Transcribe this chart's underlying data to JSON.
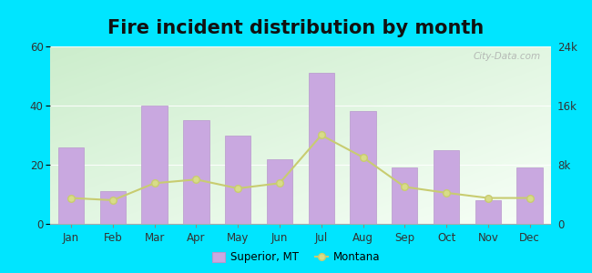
{
  "title": "Fire incident distribution by month",
  "months": [
    "Jan",
    "Feb",
    "Mar",
    "Apr",
    "May",
    "Jun",
    "Jul",
    "Aug",
    "Sep",
    "Oct",
    "Nov",
    "Dec"
  ],
  "bar_values": [
    26,
    11,
    40,
    35,
    30,
    22,
    51,
    38,
    19,
    25,
    8,
    19
  ],
  "line_values": [
    3500,
    3200,
    5500,
    6000,
    4800,
    5500,
    12000,
    9000,
    5000,
    4200,
    3500,
    3500
  ],
  "bar_color": "#c9a8e0",
  "bar_edge_color": "#b898cc",
  "line_color": "#c8cc70",
  "line_marker_color": "#d8dc88",
  "background_outer": "#00e5ff",
  "ylim_left": [
    0,
    60
  ],
  "ylim_right": [
    0,
    24000
  ],
  "yticks_left": [
    0,
    20,
    40,
    60
  ],
  "yticks_right": [
    0,
    8000,
    16000,
    24000
  ],
  "ytick_labels_right": [
    "0",
    "8k",
    "16k",
    "24k"
  ],
  "legend_label_bar": "Superior, MT",
  "legend_label_line": "Montana",
  "title_fontsize": 15,
  "watermark": "City-Data.com"
}
